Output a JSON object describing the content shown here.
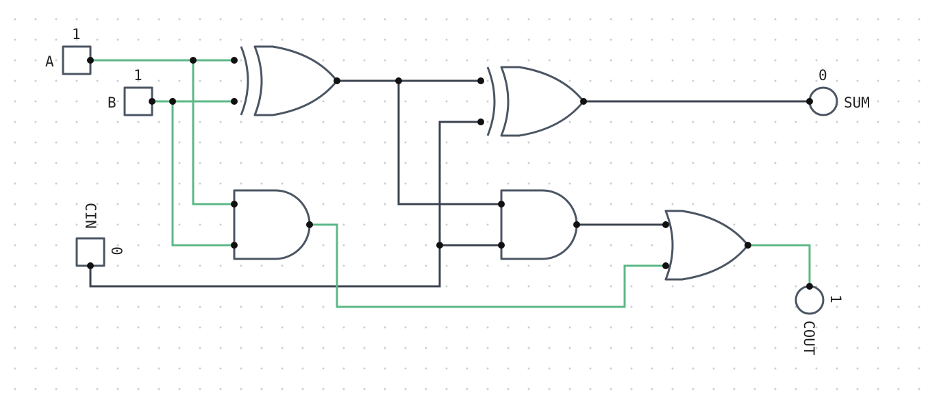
{
  "inputs": {
    "a": {
      "label": "A",
      "value": "1"
    },
    "b": {
      "label": "B",
      "value": "1"
    },
    "cin": {
      "label": "CIN",
      "value": "0"
    }
  },
  "outputs": {
    "sum": {
      "label": "SUM",
      "value": "0"
    },
    "cout": {
      "label": "COUT",
      "value": "1"
    }
  },
  "gates": [
    "xor-1",
    "xor-2",
    "and-1",
    "and-2",
    "or-1"
  ],
  "colors": {
    "active_wire": "#5cb887",
    "inactive_wire": "#3b4350",
    "gate_stroke": "#4b5563",
    "grid_dot": "#c9cdd3"
  }
}
